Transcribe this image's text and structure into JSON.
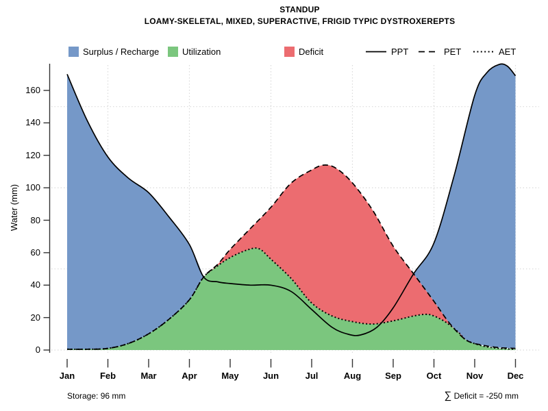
{
  "header": {
    "title": "STANDUP",
    "subtitle": "LOAMY-SKELETAL, MIXED, SUPERACTIVE, FRIGID TYPIC DYSTROXEREPTS"
  },
  "axes": {
    "y_label": "Water (mm)"
  },
  "annotations": {
    "storage": "Storage: 96 mm",
    "deficit_sigma": "∑",
    "deficit_sum": " Deficit = -250 mm"
  },
  "colors": {
    "surplus": "#7598C8",
    "utilization": "#7BC67E",
    "deficit": "#EC6C70",
    "line": "#000000",
    "grid": "#D9D9D9",
    "axis": "#333333"
  },
  "legend": {
    "items": [
      {
        "label": "Surplus / Recharge",
        "swatch": "fill",
        "color": "#7598C8"
      },
      {
        "label": "Utilization",
        "swatch": "fill",
        "color": "#7BC67E"
      },
      {
        "label": "Deficit",
        "swatch": "fill",
        "color": "#EC6C70"
      },
      {
        "label": "PPT",
        "swatch": "line",
        "style": "solid"
      },
      {
        "label": "PET",
        "swatch": "line",
        "style": "dashed"
      },
      {
        "label": "AET",
        "swatch": "line",
        "style": "dotted"
      }
    ]
  },
  "chart_data": {
    "type": "area",
    "title": "STANDUP",
    "subtitle": "LOAMY-SKELETAL, MIXED, SUPERACTIVE, FRIGID TYPIC DYSTROXEREPTS",
    "xlabel": "",
    "ylabel": "Water (mm)",
    "months": [
      "Jan",
      "Feb",
      "Mar",
      "Apr",
      "May",
      "Jun",
      "Jul",
      "Aug",
      "Sep",
      "Oct",
      "Nov",
      "Dec"
    ],
    "ylim": [
      0,
      178
    ],
    "yticks": [
      0,
      20,
      40,
      60,
      80,
      100,
      120,
      140,
      160
    ],
    "gridlines": {
      "h_mm": [
        0,
        50,
        100,
        150
      ],
      "v_months": [
        "Feb",
        "Apr",
        "Jun",
        "Aug",
        "Oct",
        "Dec"
      ],
      "v_month_index": [
        1,
        3,
        5,
        7,
        9,
        11
      ]
    },
    "legend_position": "top",
    "monthly_values": {
      "PPT": [
        170,
        119,
        97,
        65,
        41,
        40,
        25,
        9.5,
        26,
        66,
        157,
        169
      ],
      "PET": [
        0.5,
        1,
        10,
        31,
        62,
        88,
        111,
        103,
        64,
        30,
        4,
        1
      ],
      "AET": [
        0.5,
        1,
        10,
        31,
        57,
        56,
        29,
        17.5,
        18,
        21,
        2.5,
        0.5
      ]
    },
    "series": [
      {
        "name": "PPT",
        "style": "solid",
        "points": [
          [
            0,
            170
          ],
          [
            0.5,
            141
          ],
          [
            1,
            119
          ],
          [
            1.5,
            106
          ],
          [
            2,
            97
          ],
          [
            2.5,
            82
          ],
          [
            3,
            65
          ],
          [
            3.35,
            45
          ],
          [
            3.7,
            42
          ],
          [
            4,
            41
          ],
          [
            4.5,
            40
          ],
          [
            5,
            40
          ],
          [
            5.5,
            36
          ],
          [
            6,
            25
          ],
          [
            6.5,
            14
          ],
          [
            6.9,
            9.7
          ],
          [
            7.2,
            9.3
          ],
          [
            7.6,
            14
          ],
          [
            8,
            26
          ],
          [
            8.5,
            47
          ],
          [
            9,
            66
          ],
          [
            9.5,
            108
          ],
          [
            10,
            157
          ],
          [
            10.3,
            171
          ],
          [
            10.6,
            176
          ],
          [
            10.8,
            175
          ],
          [
            11,
            169
          ]
        ]
      },
      {
        "name": "PET",
        "style": "dashed",
        "points": [
          [
            0,
            0.5
          ],
          [
            0.5,
            0.5
          ],
          [
            1,
            1
          ],
          [
            1.5,
            4
          ],
          [
            2,
            10
          ],
          [
            2.5,
            19
          ],
          [
            3,
            31
          ],
          [
            3.35,
            45
          ],
          [
            3.7,
            53
          ],
          [
            4,
            62
          ],
          [
            4.5,
            75
          ],
          [
            5,
            88
          ],
          [
            5.5,
            103
          ],
          [
            6,
            111
          ],
          [
            6.3,
            114
          ],
          [
            6.6,
            112
          ],
          [
            7,
            103
          ],
          [
            7.5,
            86
          ],
          [
            8,
            64
          ],
          [
            8.5,
            47
          ],
          [
            9,
            30
          ],
          [
            9.4,
            16
          ],
          [
            9.8,
            6
          ],
          [
            10.2,
            3
          ],
          [
            10.6,
            1.5
          ],
          [
            11,
            1
          ]
        ]
      },
      {
        "name": "AET",
        "style": "dotted",
        "points": [
          [
            0,
            0.5
          ],
          [
            0.5,
            0.5
          ],
          [
            1,
            1
          ],
          [
            1.5,
            4
          ],
          [
            2,
            10
          ],
          [
            2.5,
            19
          ],
          [
            3,
            31
          ],
          [
            3.35,
            45
          ],
          [
            3.7,
            52
          ],
          [
            4,
            57
          ],
          [
            4.4,
            61.5
          ],
          [
            4.7,
            62.5
          ],
          [
            5,
            56
          ],
          [
            5.5,
            44
          ],
          [
            6,
            29
          ],
          [
            6.5,
            21
          ],
          [
            7,
            17.5
          ],
          [
            7.5,
            16
          ],
          [
            8,
            18
          ],
          [
            8.5,
            21
          ],
          [
            8.8,
            22
          ],
          [
            9,
            21
          ],
          [
            9.3,
            17
          ],
          [
            9.6,
            11
          ],
          [
            9.8,
            6
          ],
          [
            10.2,
            2.5
          ],
          [
            10.6,
            1
          ],
          [
            11,
            0.5
          ]
        ]
      }
    ],
    "regions": [
      {
        "name": "Surplus / Recharge",
        "color": "#7598C8",
        "upper": "PPT",
        "lower": "PET",
        "t_ranges": [
          [
            0,
            3.35
          ],
          [
            8.5,
            11
          ]
        ]
      },
      {
        "name": "Utilization",
        "color": "#7BC67E",
        "upper": "AET",
        "lower": "baseline",
        "t_ranges": [
          [
            0,
            11
          ]
        ]
      },
      {
        "name": "Deficit",
        "color": "#EC6C70",
        "upper": "PET",
        "lower": "AET",
        "t_ranges": [
          [
            3.35,
            9.8
          ]
        ]
      }
    ]
  }
}
